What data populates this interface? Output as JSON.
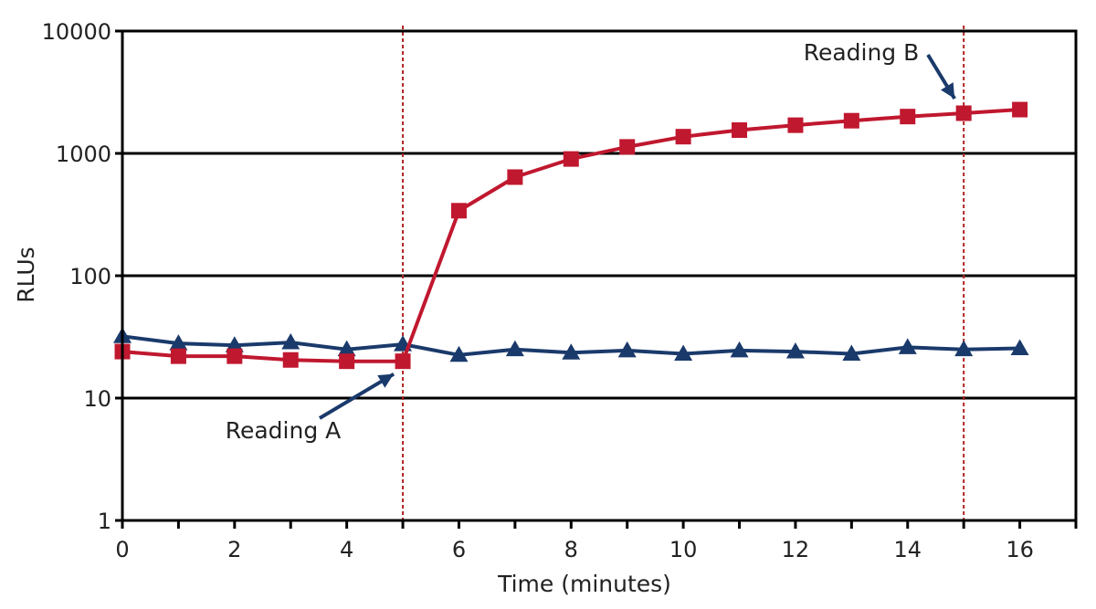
{
  "chart_data": {
    "type": "line",
    "title": "",
    "xlabel": "Time (minutes)",
    "ylabel": "RLUs",
    "xlim": [
      0,
      17
    ],
    "ylim": [
      1,
      10000
    ],
    "yscale": "log",
    "x_ticks": [
      0,
      2,
      4,
      6,
      8,
      10,
      12,
      14,
      16
    ],
    "y_ticks": [
      1,
      10,
      100,
      1000,
      10000
    ],
    "y_tick_labels": [
      "1",
      "10",
      "100",
      "1000",
      "10000"
    ],
    "grid": "horizontal",
    "x": [
      0,
      1,
      2,
      3,
      4,
      5,
      6,
      7,
      8,
      9,
      10,
      11,
      12,
      13,
      14,
      15,
      16
    ],
    "series": [
      {
        "marker": "triangle",
        "color": "#1a3a6b",
        "values": [
          32,
          28,
          27,
          28.5,
          25,
          27.5,
          22.5,
          25,
          23.5,
          24.5,
          23,
          24.5,
          24,
          23,
          26,
          25,
          25.5
        ]
      },
      {
        "marker": "square",
        "color": "#c0182f",
        "values": [
          24,
          22,
          22,
          20.5,
          20,
          20,
          340,
          640,
          900,
          1130,
          1370,
          1550,
          1700,
          1850,
          2000,
          2130,
          2280
        ]
      }
    ],
    "vlines": [
      5,
      15
    ],
    "vline_color": "#b22222",
    "annotations": [
      {
        "text": "Reading A",
        "x": 5,
        "y": 20
      },
      {
        "text": "Reading B",
        "x": 15,
        "y": 2130
      }
    ]
  }
}
